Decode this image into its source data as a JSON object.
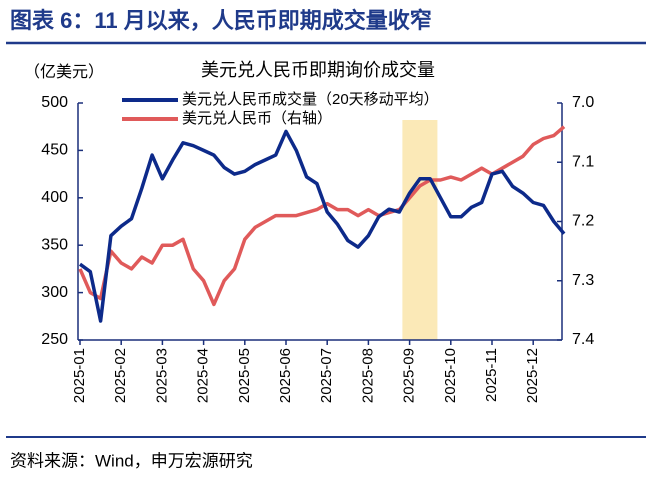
{
  "header": {
    "title": "图表 6：11 月以来，人民币即期成交量收窄"
  },
  "chart_data": {
    "type": "line",
    "title": "美元兑人民币即期询价成交量",
    "y_unit": "（亿美元）",
    "categories": [
      "2025-01",
      null,
      null,
      null,
      "2025-02",
      null,
      null,
      null,
      "2025-03",
      null,
      null,
      null,
      "2025-04",
      null,
      null,
      null,
      "2025-05",
      null,
      null,
      null,
      "2025-06",
      null,
      null,
      null,
      "2025-07",
      null,
      null,
      null,
      "2025-08",
      null,
      null,
      null,
      "2025-09",
      null,
      null,
      null,
      "2025-10",
      null,
      null,
      null,
      "2025-11",
      null,
      null,
      null,
      "2025-12",
      null,
      null,
      null
    ],
    "series": [
      {
        "name": "美元兑人民币成交量（20天移动平均）",
        "color": "#0d2a8a",
        "values": [
          330,
          322,
          270,
          360,
          370,
          378,
          410,
          445,
          420,
          440,
          458,
          455,
          450,
          445,
          432,
          425,
          428,
          435,
          440,
          445,
          470,
          450,
          422,
          415,
          385,
          372,
          355,
          348,
          360,
          380,
          388,
          385,
          405,
          420,
          420,
          400,
          380,
          380,
          390,
          395,
          425,
          428,
          412,
          405,
          395,
          392,
          375,
          362
        ]
      },
      {
        "name": "美元兑人民币（右轴）",
        "color": "#e05a5a",
        "axis": "y2",
        "values": [
          7.28,
          7.32,
          7.33,
          7.25,
          7.27,
          7.28,
          7.26,
          7.27,
          7.24,
          7.24,
          7.23,
          7.28,
          7.3,
          7.34,
          7.3,
          7.28,
          7.23,
          7.21,
          7.2,
          7.19,
          7.19,
          7.19,
          7.185,
          7.18,
          7.17,
          7.18,
          7.18,
          7.19,
          7.18,
          7.19,
          7.185,
          7.18,
          7.16,
          7.14,
          7.13,
          7.13,
          7.125,
          7.13,
          7.12,
          7.11,
          7.12,
          7.11,
          7.1,
          7.09,
          7.07,
          7.06,
          7.055,
          7.04
        ]
      }
    ],
    "ylim": [
      250,
      500
    ],
    "yticks": [
      250,
      300,
      350,
      400,
      450,
      500
    ],
    "y2lim": [
      7.4,
      7.0
    ],
    "y2ticks": [
      {
        "value": 7.0,
        "label": "7.0"
      },
      7.1,
      7.2,
      7.3,
      7.4
    ],
    "highlight": {
      "from": 31.3,
      "to": 34.7,
      "color": "#fbe9b7"
    }
  },
  "footer": {
    "source": "资料来源：Wind，申万宏源研究"
  }
}
